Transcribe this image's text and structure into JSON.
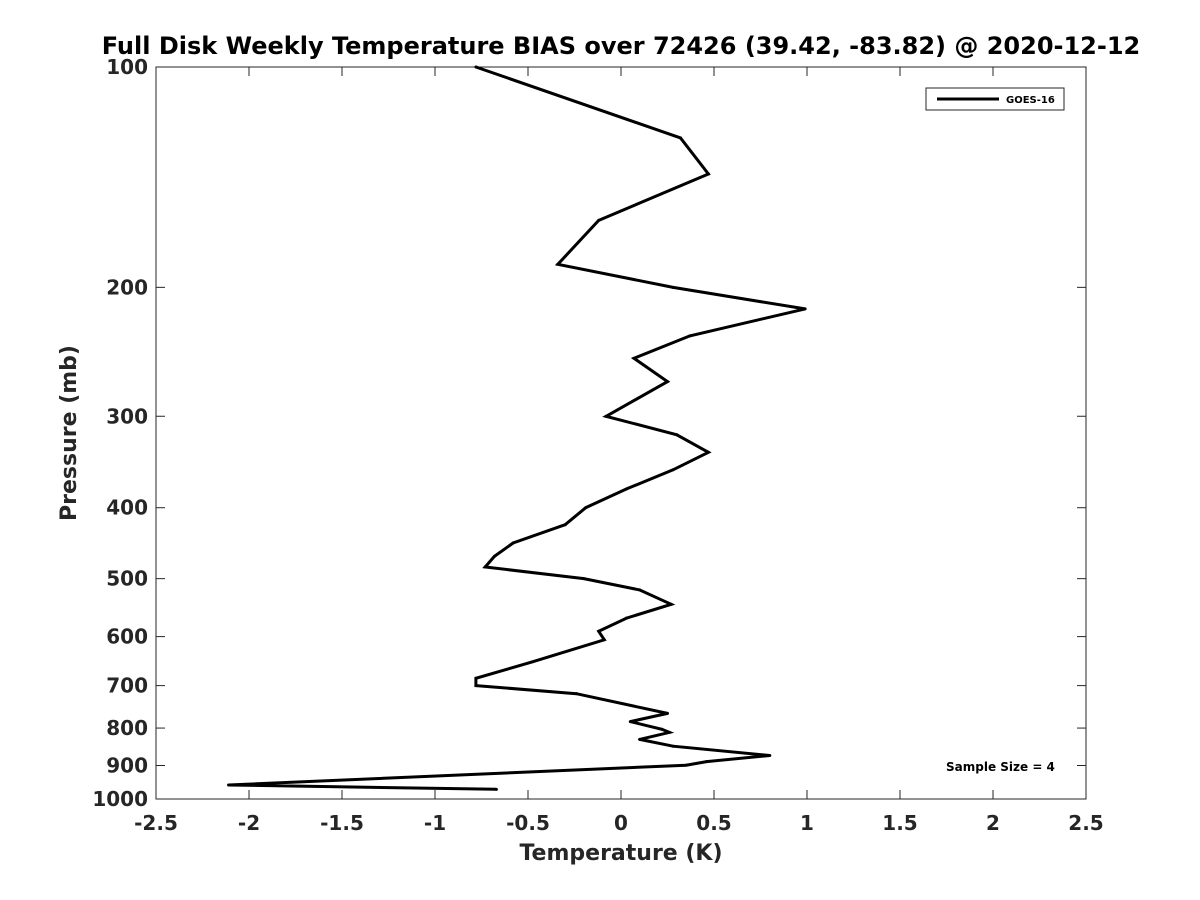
{
  "chart_data": {
    "type": "line",
    "title": "Full Disk Weekly Temperature BIAS over 72426 (39.42, -83.82) @ 2020-12-12",
    "xlabel": "Temperature (K)",
    "ylabel": "Pressure (mb)",
    "xlim": [
      -2.5,
      2.5
    ],
    "ylim": [
      100,
      1000
    ],
    "y_scale": "log",
    "y_reversed": true,
    "grid": false,
    "legend_position": "top-right",
    "x_ticks": [
      -2.5,
      -2,
      -1.5,
      -1,
      -0.5,
      0,
      0.5,
      1,
      1.5,
      2,
      2.5
    ],
    "x_tick_labels": [
      "-2.5",
      "-2",
      "-1.5",
      "-1",
      "-0.5",
      "0",
      "0.5",
      "1",
      "1.5",
      "2",
      "2.5"
    ],
    "y_ticks": [
      100,
      200,
      300,
      400,
      500,
      600,
      700,
      800,
      900,
      1000
    ],
    "y_tick_labels": [
      "100",
      "200",
      "300",
      "400",
      "500",
      "600",
      "700",
      "800",
      "900",
      "1000"
    ],
    "series": [
      {
        "name": "GOES-16",
        "color": "#000000",
        "points": [
          {
            "x": -0.78,
            "y": 100
          },
          {
            "x": 0.32,
            "y": 125
          },
          {
            "x": 0.47,
            "y": 140
          },
          {
            "x": -0.12,
            "y": 162
          },
          {
            "x": -0.34,
            "y": 186
          },
          {
            "x": 0.28,
            "y": 200
          },
          {
            "x": 0.99,
            "y": 214
          },
          {
            "x": 0.37,
            "y": 233
          },
          {
            "x": 0.07,
            "y": 250
          },
          {
            "x": 0.25,
            "y": 269
          },
          {
            "x": -0.08,
            "y": 300
          },
          {
            "x": 0.3,
            "y": 318
          },
          {
            "x": 0.47,
            "y": 336
          },
          {
            "x": 0.28,
            "y": 355
          },
          {
            "x": 0.03,
            "y": 377
          },
          {
            "x": -0.19,
            "y": 400
          },
          {
            "x": -0.3,
            "y": 422
          },
          {
            "x": -0.58,
            "y": 447
          },
          {
            "x": -0.68,
            "y": 466
          },
          {
            "x": -0.73,
            "y": 482
          },
          {
            "x": -0.2,
            "y": 500
          },
          {
            "x": 0.1,
            "y": 518
          },
          {
            "x": 0.27,
            "y": 542
          },
          {
            "x": 0.03,
            "y": 566
          },
          {
            "x": -0.12,
            "y": 590
          },
          {
            "x": -0.09,
            "y": 606
          },
          {
            "x": -0.48,
            "y": 650
          },
          {
            "x": -0.78,
            "y": 684
          },
          {
            "x": -0.78,
            "y": 700
          },
          {
            "x": -0.24,
            "y": 718
          },
          {
            "x": 0.25,
            "y": 764
          },
          {
            "x": 0.05,
            "y": 784
          },
          {
            "x": 0.22,
            "y": 803
          },
          {
            "x": 0.26,
            "y": 811
          },
          {
            "x": 0.1,
            "y": 829
          },
          {
            "x": 0.28,
            "y": 847
          },
          {
            "x": 0.8,
            "y": 872
          },
          {
            "x": 0.46,
            "y": 889
          },
          {
            "x": 0.35,
            "y": 899
          },
          {
            "x": -2.11,
            "y": 957
          },
          {
            "x": -0.67,
            "y": 970
          }
        ]
      }
    ],
    "annotations": [
      "Sample Size = 4"
    ]
  }
}
